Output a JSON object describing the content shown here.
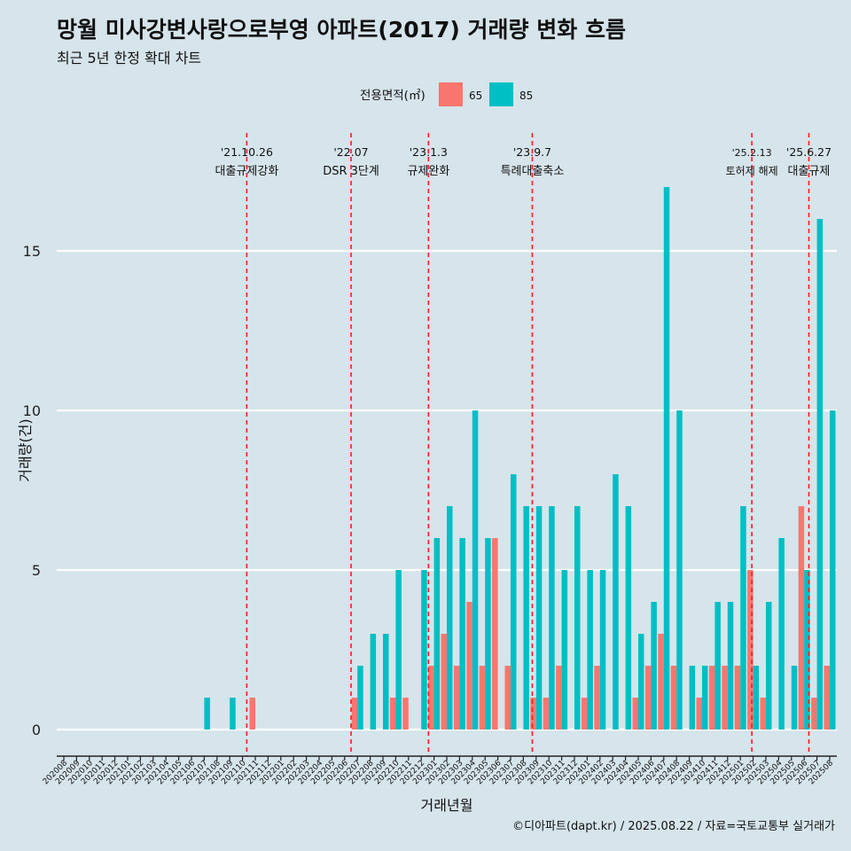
{
  "header": {
    "title": "망월 미사강변사랑으로부영 아파트(2017) 거래량 변화 흐름",
    "subtitle": "최근 5년 한정 확대 차트"
  },
  "footer": {
    "caption": "©디아파트(dapt.kr) / 2025.08.22 / 자료=국토교통부 실거래가"
  },
  "chart_data": {
    "type": "bar",
    "title": "망월 미사강변사랑으로부영 아파트(2017) 거래량 변화 흐름",
    "subtitle": "최근 5년 한정 확대 차트",
    "xlabel": "거래년월",
    "ylabel": "거래량(건)",
    "ylim": [
      0,
      17
    ],
    "yticks": [
      0,
      5,
      10,
      15
    ],
    "grid": true,
    "legend": {
      "title": "전용면적(㎡)",
      "placement": "top"
    },
    "categories": [
      "202008",
      "202009",
      "202010",
      "202011",
      "202012",
      "202101",
      "202102",
      "202103",
      "202104",
      "202105",
      "202106",
      "202107",
      "202108",
      "202109",
      "202110",
      "202111",
      "202112",
      "202201",
      "202202",
      "202203",
      "202204",
      "202205",
      "202206",
      "202207",
      "202208",
      "202209",
      "202210",
      "202211",
      "202212",
      "202301",
      "202302",
      "202303",
      "202304",
      "202305",
      "202306",
      "202307",
      "202308",
      "202309",
      "202310",
      "202311",
      "202312",
      "202401",
      "202402",
      "202403",
      "202404",
      "202405",
      "202406",
      "202407",
      "202408",
      "202409",
      "202410",
      "202411",
      "202412",
      "202501",
      "202502",
      "202503",
      "202504",
      "202505",
      "202506",
      "202507",
      "202508"
    ],
    "series": [
      {
        "name": "65",
        "color": "#f8766d",
        "values": [
          0,
          0,
          0,
          0,
          0,
          0,
          0,
          0,
          0,
          0,
          0,
          0,
          0,
          0,
          0,
          1,
          0,
          0,
          0,
          0,
          0,
          0,
          0,
          1,
          0,
          0,
          1,
          1,
          0,
          2,
          3,
          2,
          4,
          2,
          6,
          2,
          0,
          1,
          1,
          2,
          0,
          1,
          2,
          0,
          0,
          1,
          2,
          3,
          2,
          0,
          1,
          2,
          2,
          2,
          5,
          1,
          0,
          0,
          7,
          1,
          2
        ]
      },
      {
        "name": "85",
        "color": "#00bfc4",
        "values": [
          0,
          0,
          0,
          0,
          0,
          0,
          0,
          0,
          0,
          0,
          0,
          1,
          0,
          1,
          0,
          0,
          0,
          0,
          0,
          0,
          0,
          0,
          0,
          2,
          3,
          3,
          5,
          0,
          5,
          6,
          7,
          6,
          10,
          6,
          0,
          8,
          7,
          7,
          7,
          5,
          7,
          5,
          5,
          8,
          7,
          3,
          4,
          17,
          10,
          2,
          2,
          4,
          4,
          7,
          2,
          4,
          6,
          2,
          5,
          16,
          10
        ]
      }
    ],
    "annotations": [
      {
        "date_label": "'21.10.26",
        "text": "대출규제강화",
        "month": "202110",
        "day": 26
      },
      {
        "date_label": "'22.07",
        "text": "DSR 3단계",
        "month": "202207",
        "day": 1
      },
      {
        "date_label": "'23.1.3",
        "text": "규제완화",
        "month": "202301",
        "day": 3
      },
      {
        "date_label": "'23.9.7",
        "text": "특례대출축소",
        "month": "202309",
        "day": 7
      },
      {
        "date_label": "'25.2.13",
        "text": "토허제 해제",
        "month": "202502",
        "day": 13
      },
      {
        "date_label": "'25.6.27",
        "text": "대출규제",
        "month": "202506",
        "day": 27
      }
    ]
  }
}
